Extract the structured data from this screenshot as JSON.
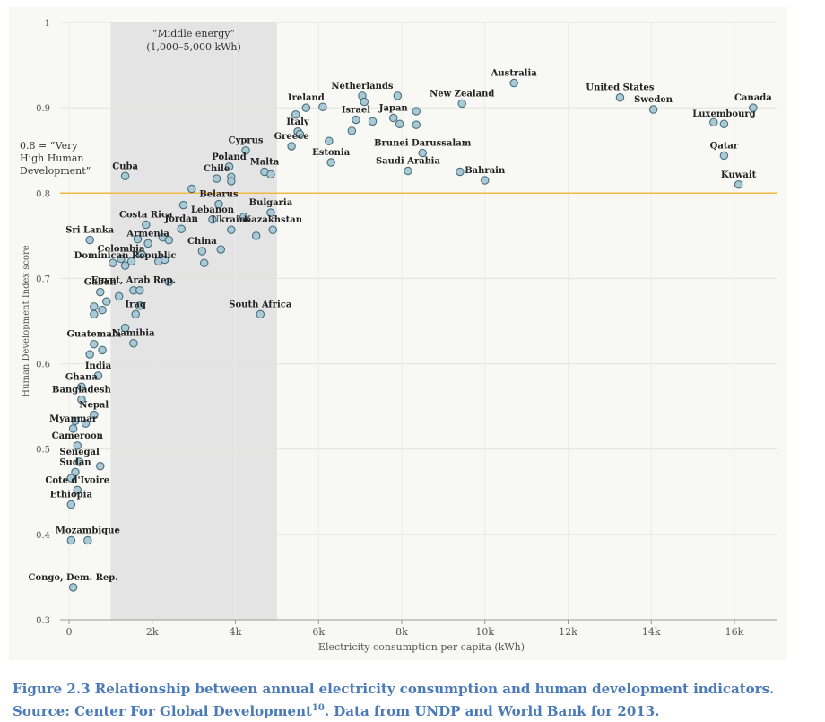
{
  "chart_data": {
    "type": "scatter",
    "title": "",
    "xlabel": "Electricity consumption per capita (kWh)",
    "ylabel": "Human Development Index score",
    "xlim": [
      -500,
      17000
    ],
    "ylim": [
      0.3,
      1.0
    ],
    "x_ticks": [
      0,
      2000,
      4000,
      6000,
      8000,
      10000,
      12000,
      14000,
      16000
    ],
    "x_tick_labels": [
      "0",
      "2k",
      "4k",
      "6k",
      "8k",
      "10k",
      "12k",
      "14k",
      "16k"
    ],
    "y_ticks": [
      0.3,
      0.4,
      0.5,
      0.6,
      0.7,
      0.8,
      0.9,
      1.0
    ],
    "y_tick_labels": [
      "0.3",
      "0.4",
      "0.5",
      "0.6",
      "0.7",
      "0.8",
      "0.9",
      "1"
    ],
    "band": {
      "x0": 1000,
      "x1": 5000,
      "label_line1": "“Middle energy”",
      "label_line2": "(1,000–5,000 kWh)"
    },
    "threshold": {
      "y": 0.8,
      "color": "#f5b942",
      "label_line1": "0.8 = “Very",
      "label_line2": "High Human",
      "label_line3": "Development”"
    },
    "point_color": "#a9c9d6",
    "points": [
      {
        "name": "Australia",
        "x": 10700,
        "y": 0.929
      },
      {
        "name": "United States",
        "x": 13250,
        "y": 0.912
      },
      {
        "name": "Sweden",
        "x": 14050,
        "y": 0.898
      },
      {
        "name": "Canada",
        "x": 16450,
        "y": 0.9
      },
      {
        "name": "Luxembourg",
        "x": 15750,
        "y": 0.881
      },
      {
        "name": "",
        "x": 15500,
        "y": 0.883
      },
      {
        "name": "Qatar",
        "x": 15750,
        "y": 0.844
      },
      {
        "name": "Kuwait",
        "x": 16100,
        "y": 0.81
      },
      {
        "name": "Netherlands",
        "x": 7050,
        "y": 0.914
      },
      {
        "name": "",
        "x": 7100,
        "y": 0.907
      },
      {
        "name": "",
        "x": 7900,
        "y": 0.914
      },
      {
        "name": "New Zealand",
        "x": 9450,
        "y": 0.905
      },
      {
        "name": "Ireland",
        "x": 5700,
        "y": 0.9
      },
      {
        "name": "",
        "x": 6100,
        "y": 0.901
      },
      {
        "name": "",
        "x": 5450,
        "y": 0.892
      },
      {
        "name": "Israel",
        "x": 6900,
        "y": 0.886
      },
      {
        "name": "",
        "x": 6800,
        "y": 0.873
      },
      {
        "name": "",
        "x": 7300,
        "y": 0.884
      },
      {
        "name": "Japan",
        "x": 7800,
        "y": 0.888
      },
      {
        "name": "",
        "x": 7950,
        "y": 0.881
      },
      {
        "name": "",
        "x": 8350,
        "y": 0.896
      },
      {
        "name": "",
        "x": 8350,
        "y": 0.88
      },
      {
        "name": "Italy",
        "x": 5500,
        "y": 0.872
      },
      {
        "name": "",
        "x": 5550,
        "y": 0.869
      },
      {
        "name": "Greece",
        "x": 5350,
        "y": 0.855
      },
      {
        "name": "",
        "x": 6250,
        "y": 0.861
      },
      {
        "name": "Estonia",
        "x": 6300,
        "y": 0.836
      },
      {
        "name": "Brunei Darussalam",
        "x": 8500,
        "y": 0.847
      },
      {
        "name": "Saudi Arabia",
        "x": 8150,
        "y": 0.826
      },
      {
        "name": "",
        "x": 9400,
        "y": 0.825
      },
      {
        "name": "Bahrain",
        "x": 10000,
        "y": 0.815
      },
      {
        "name": "Cyprus",
        "x": 4250,
        "y": 0.85
      },
      {
        "name": "Poland",
        "x": 3850,
        "y": 0.831
      },
      {
        "name": "Chile",
        "x": 3550,
        "y": 0.817
      },
      {
        "name": "",
        "x": 3900,
        "y": 0.819
      },
      {
        "name": "",
        "x": 3900,
        "y": 0.814
      },
      {
        "name": "Malta",
        "x": 4700,
        "y": 0.825
      },
      {
        "name": "",
        "x": 4850,
        "y": 0.822
      },
      {
        "name": "Cuba",
        "x": 1350,
        "y": 0.82
      },
      {
        "name": "",
        "x": 2950,
        "y": 0.805
      },
      {
        "name": "Belarus",
        "x": 3600,
        "y": 0.787
      },
      {
        "name": "",
        "x": 2750,
        "y": 0.786
      },
      {
        "name": "Lebanon",
        "x": 3450,
        "y": 0.769
      },
      {
        "name": "",
        "x": 4200,
        "y": 0.772
      },
      {
        "name": "Bulgaria",
        "x": 4850,
        "y": 0.777
      },
      {
        "name": "Kazakhstan",
        "x": 4900,
        "y": 0.757
      },
      {
        "name": "",
        "x": 4500,
        "y": 0.75
      },
      {
        "name": "Ukraine",
        "x": 3900,
        "y": 0.757
      },
      {
        "name": "",
        "x": 3650,
        "y": 0.734
      },
      {
        "name": "China",
        "x": 3200,
        "y": 0.732
      },
      {
        "name": "",
        "x": 3250,
        "y": 0.718
      },
      {
        "name": "Costa Rica",
        "x": 1850,
        "y": 0.763
      },
      {
        "name": "Jordan",
        "x": 2700,
        "y": 0.758
      },
      {
        "name": "",
        "x": 2250,
        "y": 0.748
      },
      {
        "name": "",
        "x": 2400,
        "y": 0.745
      },
      {
        "name": "",
        "x": 1650,
        "y": 0.746
      },
      {
        "name": "Armenia",
        "x": 1900,
        "y": 0.741
      },
      {
        "name": "",
        "x": 1750,
        "y": 0.728
      },
      {
        "name": "Sri Lanka",
        "x": 500,
        "y": 0.745
      },
      {
        "name": "Colombia",
        "x": 1250,
        "y": 0.723
      },
      {
        "name": "",
        "x": 1500,
        "y": 0.72
      },
      {
        "name": "",
        "x": 1050,
        "y": 0.718
      },
      {
        "name": "Dominican Republic",
        "x": 1350,
        "y": 0.715
      },
      {
        "name": "",
        "x": 2150,
        "y": 0.72
      },
      {
        "name": "",
        "x": 2300,
        "y": 0.722
      },
      {
        "name": "Egypt, Arab Rep.",
        "x": 1550,
        "y": 0.686
      },
      {
        "name": "",
        "x": 1700,
        "y": 0.686
      },
      {
        "name": "",
        "x": 2400,
        "y": 0.696
      },
      {
        "name": "Gabon",
        "x": 750,
        "y": 0.684
      },
      {
        "name": "",
        "x": 900,
        "y": 0.673
      },
      {
        "name": "",
        "x": 1200,
        "y": 0.679
      },
      {
        "name": "",
        "x": 600,
        "y": 0.667
      },
      {
        "name": "",
        "x": 800,
        "y": 0.663
      },
      {
        "name": "",
        "x": 600,
        "y": 0.658
      },
      {
        "name": "",
        "x": 1700,
        "y": 0.668
      },
      {
        "name": "Iraq",
        "x": 1600,
        "y": 0.658
      },
      {
        "name": "",
        "x": 1350,
        "y": 0.642
      },
      {
        "name": "South Africa",
        "x": 4600,
        "y": 0.658
      },
      {
        "name": "Guatemala",
        "x": 600,
        "y": 0.623
      },
      {
        "name": "",
        "x": 800,
        "y": 0.616
      },
      {
        "name": "",
        "x": 500,
        "y": 0.611
      },
      {
        "name": "Namibia",
        "x": 1550,
        "y": 0.624
      },
      {
        "name": "India",
        "x": 700,
        "y": 0.586
      },
      {
        "name": "Ghana",
        "x": 300,
        "y": 0.573
      },
      {
        "name": "Bangladesh",
        "x": 300,
        "y": 0.558
      },
      {
        "name": "Nepal",
        "x": 600,
        "y": 0.54
      },
      {
        "name": "",
        "x": 150,
        "y": 0.533
      },
      {
        "name": "Myanmar",
        "x": 100,
        "y": 0.524
      },
      {
        "name": "",
        "x": 400,
        "y": 0.53
      },
      {
        "name": "Cameroon",
        "x": 200,
        "y": 0.504
      },
      {
        "name": "Senegal",
        "x": 250,
        "y": 0.485
      },
      {
        "name": "",
        "x": 750,
        "y": 0.48
      },
      {
        "name": "Sudan",
        "x": 150,
        "y": 0.473
      },
      {
        "name": "",
        "x": 50,
        "y": 0.466
      },
      {
        "name": "Cote d'Ivoire",
        "x": 200,
        "y": 0.452
      },
      {
        "name": "Ethiopia",
        "x": 50,
        "y": 0.435
      },
      {
        "name": "Mozambique",
        "x": 450,
        "y": 0.393
      },
      {
        "name": "",
        "x": 50,
        "y": 0.393
      },
      {
        "name": "Congo, Dem. Rep.",
        "x": 100,
        "y": 0.338
      }
    ]
  },
  "caption": {
    "text_before": "Figure 2.3 Relationship between annual electricity consumption and human development indicators. Source: Center For Global Development",
    "superscript": "10",
    "text_after": ". Data from UNDP and World Bank for 2013."
  }
}
